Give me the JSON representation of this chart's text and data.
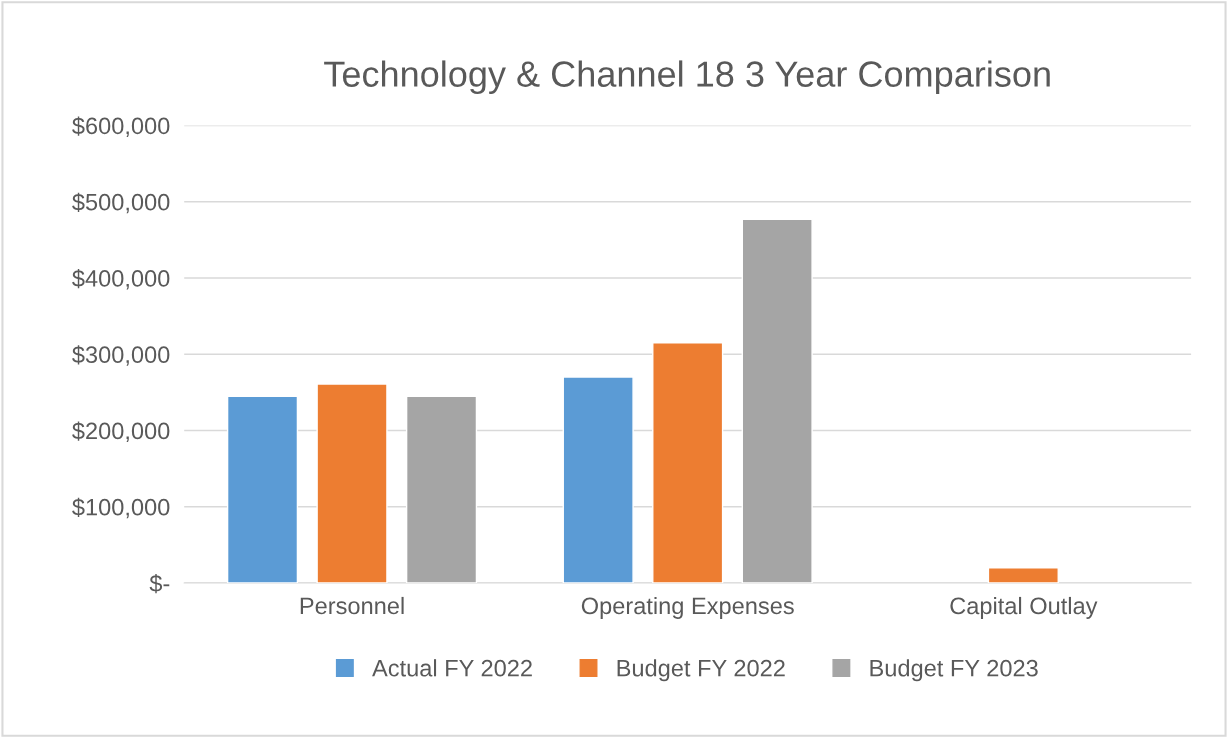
{
  "chart_data": {
    "type": "bar",
    "title": "Technology & Channel 18 3 Year Comparison",
    "categories": [
      "Personnel",
      "Operating Expenses",
      "Capital Outlay"
    ],
    "series": [
      {
        "name": "Actual FY 2022",
        "color": "#5b9bd5",
        "values": [
          245000,
          270000,
          null
        ]
      },
      {
        "name": "Budget FY 2022",
        "color": "#ed7d31",
        "values": [
          261000,
          315000,
          20000
        ]
      },
      {
        "name": "Budget FY 2023",
        "color": "#a5a5a5",
        "values": [
          245000,
          477000,
          null
        ]
      }
    ],
    "ylim": [
      0,
      600000
    ],
    "yticks": [
      {
        "value": 0,
        "label": "$-"
      },
      {
        "value": 100000,
        "label": "$100,000"
      },
      {
        "value": 200000,
        "label": "$200,000"
      },
      {
        "value": 300000,
        "label": "$300,000"
      },
      {
        "value": 400000,
        "label": "$400,000"
      },
      {
        "value": 500000,
        "label": "$500,000"
      },
      {
        "value": 600000,
        "label": "$600,000"
      }
    ],
    "grid": "y",
    "legend": "bottom"
  }
}
